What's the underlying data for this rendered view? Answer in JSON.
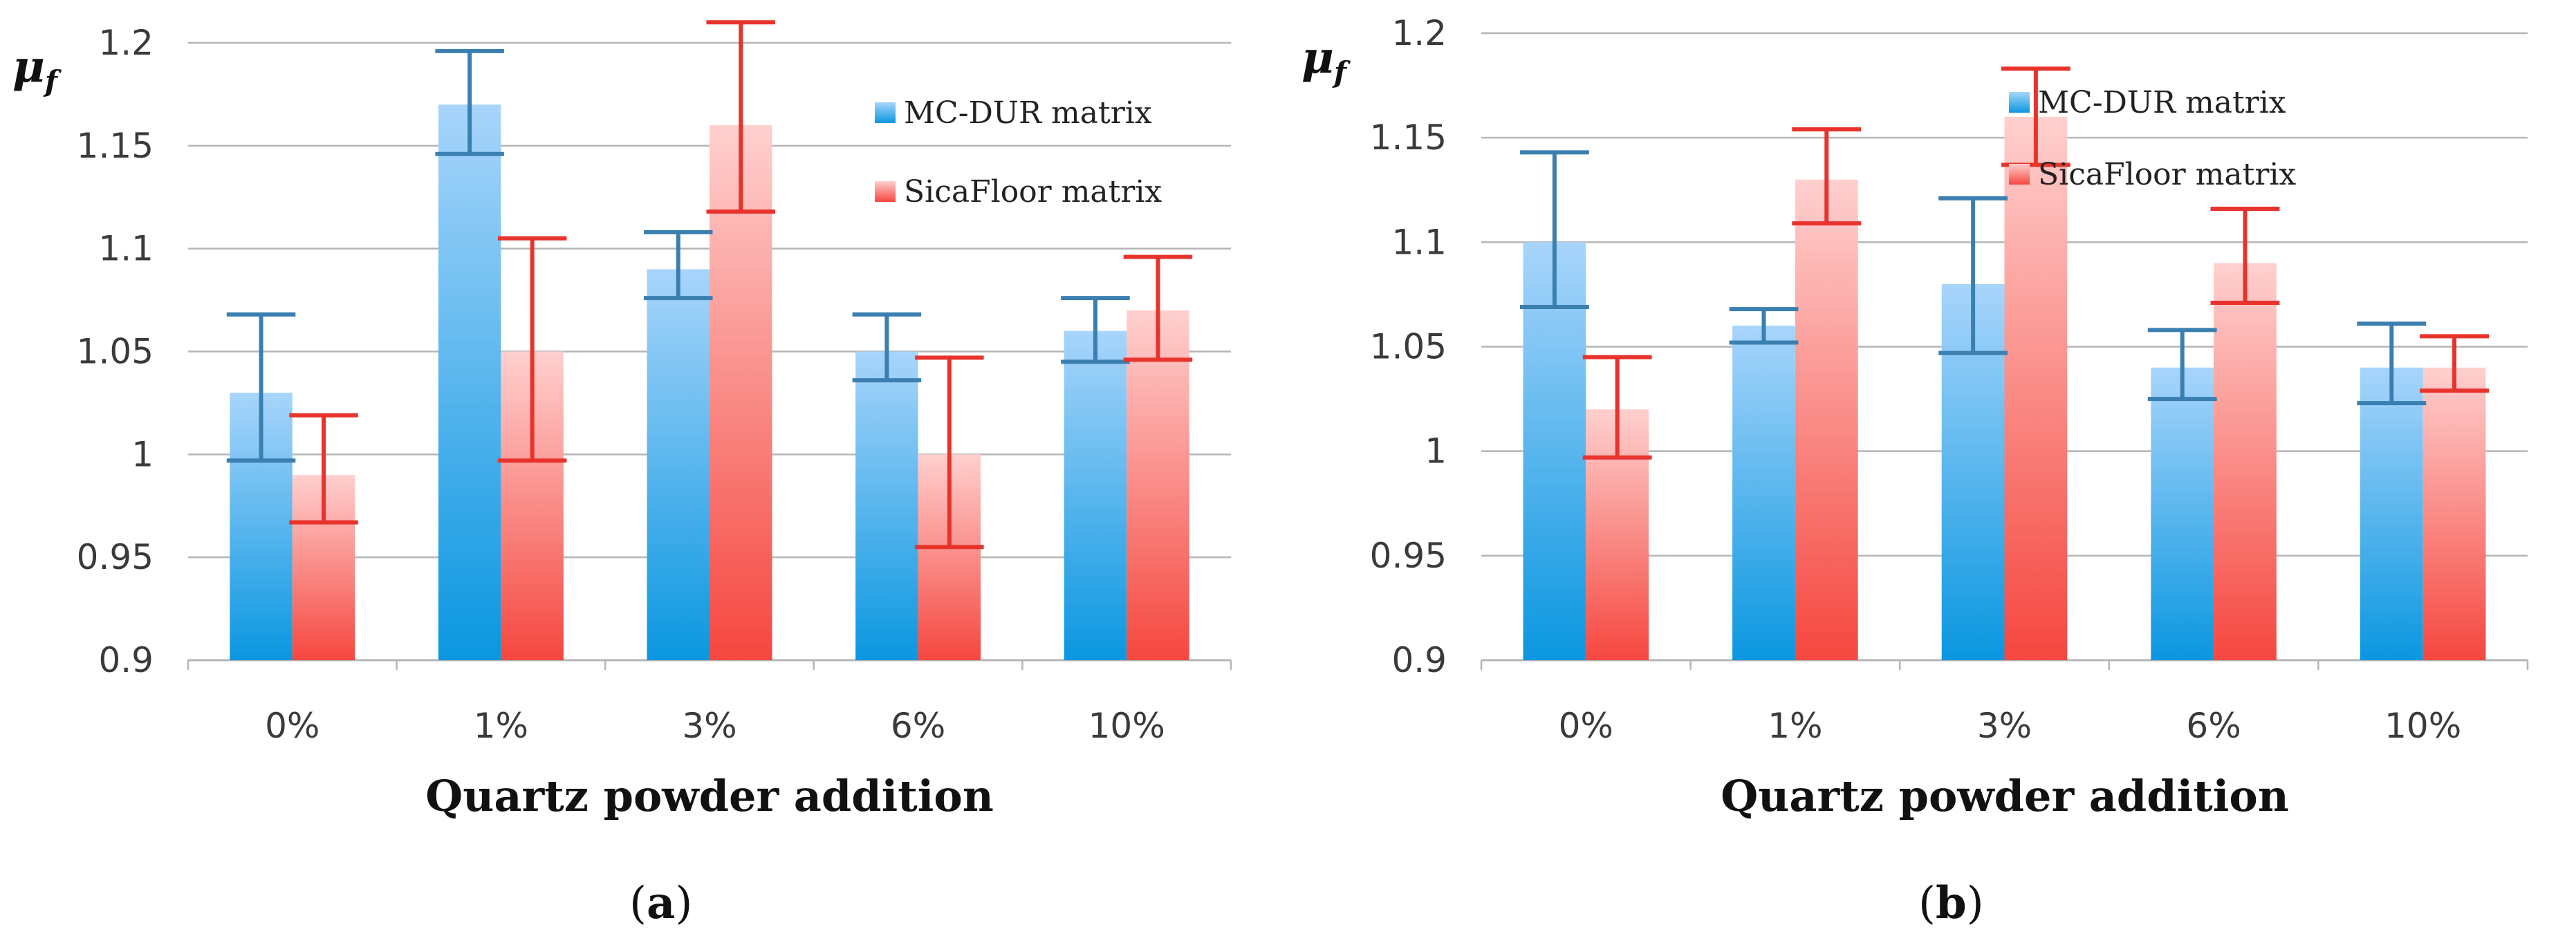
{
  "colors": {
    "series_blue_top": "#a8d5fb",
    "series_blue_bottom": "#0a97e0",
    "series_red_top": "#ffd0cf",
    "series_red_bottom": "#f5473f",
    "err_blue": "#3b7fb0",
    "err_red": "#e8332c",
    "grid": "#b5b5b5"
  },
  "chart_data": [
    {
      "type": "bar",
      "panel_label_prefix": "(",
      "panel_label_letter": "a",
      "panel_label_suffix": ")",
      "categories": [
        "0%",
        "1%",
        "3%",
        "6%",
        "10%"
      ],
      "xlabel": "Quartz powder addition",
      "ylabel": "μ",
      "ylabel_sub": "f",
      "ylim": [
        0.9,
        1.2
      ],
      "yticks": [
        "0.9",
        "0.95",
        "1",
        "1.05",
        "1.1",
        "1.15",
        "1.2"
      ],
      "legend_position": "top-right",
      "grid": true,
      "series": [
        {
          "name": "MC-DUR matrix",
          "values": [
            1.03,
            1.17,
            1.09,
            1.05,
            1.06
          ],
          "err_low": [
            0.997,
            1.146,
            1.076,
            1.036,
            1.045
          ],
          "err_high": [
            1.068,
            1.196,
            1.108,
            1.068,
            1.076
          ]
        },
        {
          "name": "SicaFloor matrix",
          "values": [
            0.99,
            1.05,
            1.16,
            1.0,
            1.07
          ],
          "err_low": [
            0.967,
            0.997,
            1.118,
            0.955,
            1.046
          ],
          "err_high": [
            1.019,
            1.105,
            1.21,
            1.047,
            1.096
          ]
        }
      ]
    },
    {
      "type": "bar",
      "panel_label_prefix": "(",
      "panel_label_letter": "b",
      "panel_label_suffix": ")",
      "categories": [
        "0%",
        "1%",
        "3%",
        "6%",
        "10%"
      ],
      "xlabel": "Quartz powder addition",
      "ylabel": "μ",
      "ylabel_sub": "f",
      "ylim": [
        0.9,
        1.2
      ],
      "yticks": [
        "0.9",
        "0.95",
        "1",
        "1.05",
        "1.1",
        "1.15",
        "1.2"
      ],
      "legend_position": "top-right",
      "grid": true,
      "series": [
        {
          "name": "MC-DUR matrix",
          "values": [
            1.1,
            1.06,
            1.08,
            1.04,
            1.04
          ],
          "err_low": [
            1.069,
            1.052,
            1.047,
            1.025,
            1.023
          ],
          "err_high": [
            1.143,
            1.068,
            1.121,
            1.058,
            1.061
          ]
        },
        {
          "name": "SicaFloor matrix",
          "values": [
            1.02,
            1.13,
            1.16,
            1.09,
            1.04
          ],
          "err_low": [
            0.997,
            1.109,
            1.137,
            1.071,
            1.029
          ],
          "err_high": [
            1.045,
            1.154,
            1.183,
            1.116,
            1.055
          ]
        }
      ]
    }
  ]
}
